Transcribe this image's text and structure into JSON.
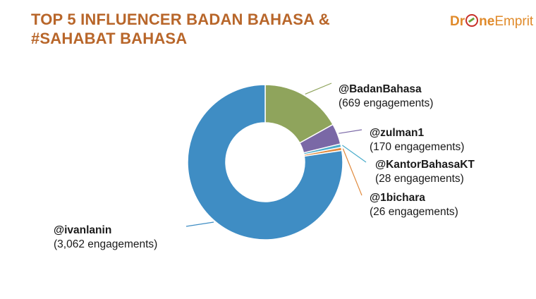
{
  "header": {
    "title": "TOP 5 INFLUENCER BADAN BAHASA & #SAHABAT BAHASA",
    "logo_part1": "Dr",
    "logo_part2": "ne",
    "logo_part3": "Emprit"
  },
  "chart_data": {
    "type": "pie",
    "donut": true,
    "title": "TOP 5 INFLUENCER BADAN BAHASA & #SAHABAT BAHASA",
    "slices": [
      {
        "name": "@BadanBahasa",
        "value": 669,
        "value_label": "(669 engagements)",
        "color": "#8fa45c"
      },
      {
        "name": "@zulman1",
        "value": 170,
        "value_label": "(170 engagements)",
        "color": "#7a68a6"
      },
      {
        "name": "@KantorBahasaKT",
        "value": 28,
        "value_label": "(28 engagements)",
        "color": "#4aaccb"
      },
      {
        "name": "@1bichara",
        "value": 26,
        "value_label": "(26 engagements)",
        "color": "#e0893c"
      },
      {
        "name": "@ivanlanin",
        "value": 3062,
        "value_label": "(3,062 engagements)",
        "color": "#3f8dc4"
      }
    ],
    "legend": "none"
  }
}
